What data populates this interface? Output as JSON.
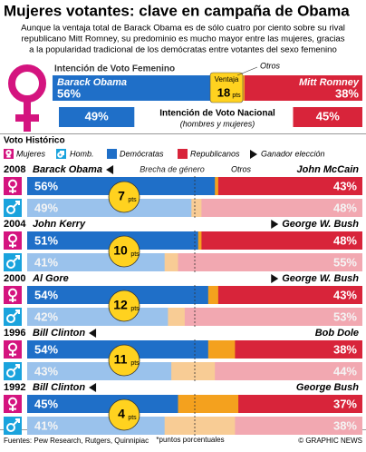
{
  "title": "Mujeres votantes: clave en campaña de Obama",
  "subtitle": [
    "Aunque la ventaja total de Barack Obama es de sólo cuatro por ciento sobre su rival",
    "republicano Mitt Romney, su predominio es mucho mayor entre las mujeres, gracias",
    "a la popularidad tradicional de los demócratas entre votantes del sexo femenino"
  ],
  "female_intent": {
    "label": "Intención de Voto Femenino",
    "candidates": [
      "Barack Obama",
      "Mitt Romney"
    ],
    "values": [
      56,
      38
    ],
    "value_labels": [
      "56%",
      "38%"
    ],
    "lead_label": "Ventaja",
    "lead": 18,
    "unit": "pts",
    "others_label": "Otros"
  },
  "national": {
    "label": "Intención de Voto Nacional",
    "sublabel": "(hombres y mujeres)",
    "values": [
      49,
      45
    ],
    "value_labels": [
      "49%",
      "45%"
    ]
  },
  "history": {
    "title": "Voto Histórico",
    "legend": [
      "Mujeres",
      "Homb.",
      "Demócratas",
      "Republicanos",
      "Ganador elección"
    ],
    "gap_label": "Brecha de género",
    "others_label": "Otros",
    "gap_unit": "pts",
    "elections": [
      {
        "year": "2008",
        "candidates": [
          "Barack Obama",
          "John McCain"
        ],
        "winner": 0,
        "women": {
          "values": [
            56,
            43
          ],
          "value_labels": [
            "56%",
            "43%"
          ]
        },
        "men": {
          "values": [
            49,
            48
          ],
          "value_labels": [
            "49%",
            "48%"
          ]
        },
        "gap": 7
      },
      {
        "year": "2004",
        "candidates": [
          "John Kerry",
          "George W. Bush"
        ],
        "winner": 1,
        "women": {
          "values": [
            51,
            48
          ],
          "value_labels": [
            "51%",
            "48%"
          ]
        },
        "men": {
          "values": [
            41,
            55
          ],
          "value_labels": [
            "41%",
            "55%"
          ]
        },
        "gap": 10
      },
      {
        "year": "2000",
        "candidates": [
          "Al Gore",
          "George W. Bush"
        ],
        "winner": 1,
        "women": {
          "values": [
            54,
            43
          ],
          "value_labels": [
            "54%",
            "43%"
          ]
        },
        "men": {
          "values": [
            42,
            53
          ],
          "value_labels": [
            "42%",
            "53%"
          ]
        },
        "gap": 12
      },
      {
        "year": "1996",
        "candidates": [
          "Bill Clinton",
          "Bob Dole"
        ],
        "winner": 0,
        "women": {
          "values": [
            54,
            38
          ],
          "value_labels": [
            "54%",
            "38%"
          ]
        },
        "men": {
          "values": [
            43,
            44
          ],
          "value_labels": [
            "43%",
            "44%"
          ]
        },
        "gap": 11
      },
      {
        "year": "1992",
        "candidates": [
          "Bill Clinton",
          "George Bush"
        ],
        "winner": 0,
        "women": {
          "values": [
            45,
            37
          ],
          "value_labels": [
            "45%",
            "37%"
          ]
        },
        "men": {
          "values": [
            41,
            38
          ],
          "value_labels": [
            "41%",
            "38%"
          ]
        },
        "gap": 4
      }
    ]
  },
  "footnote": "*puntos porcentuales",
  "source": "Fuentes: Pew Research, Rutgers, Quinnipiac",
  "credit": "© GRAPHIC NEWS"
}
